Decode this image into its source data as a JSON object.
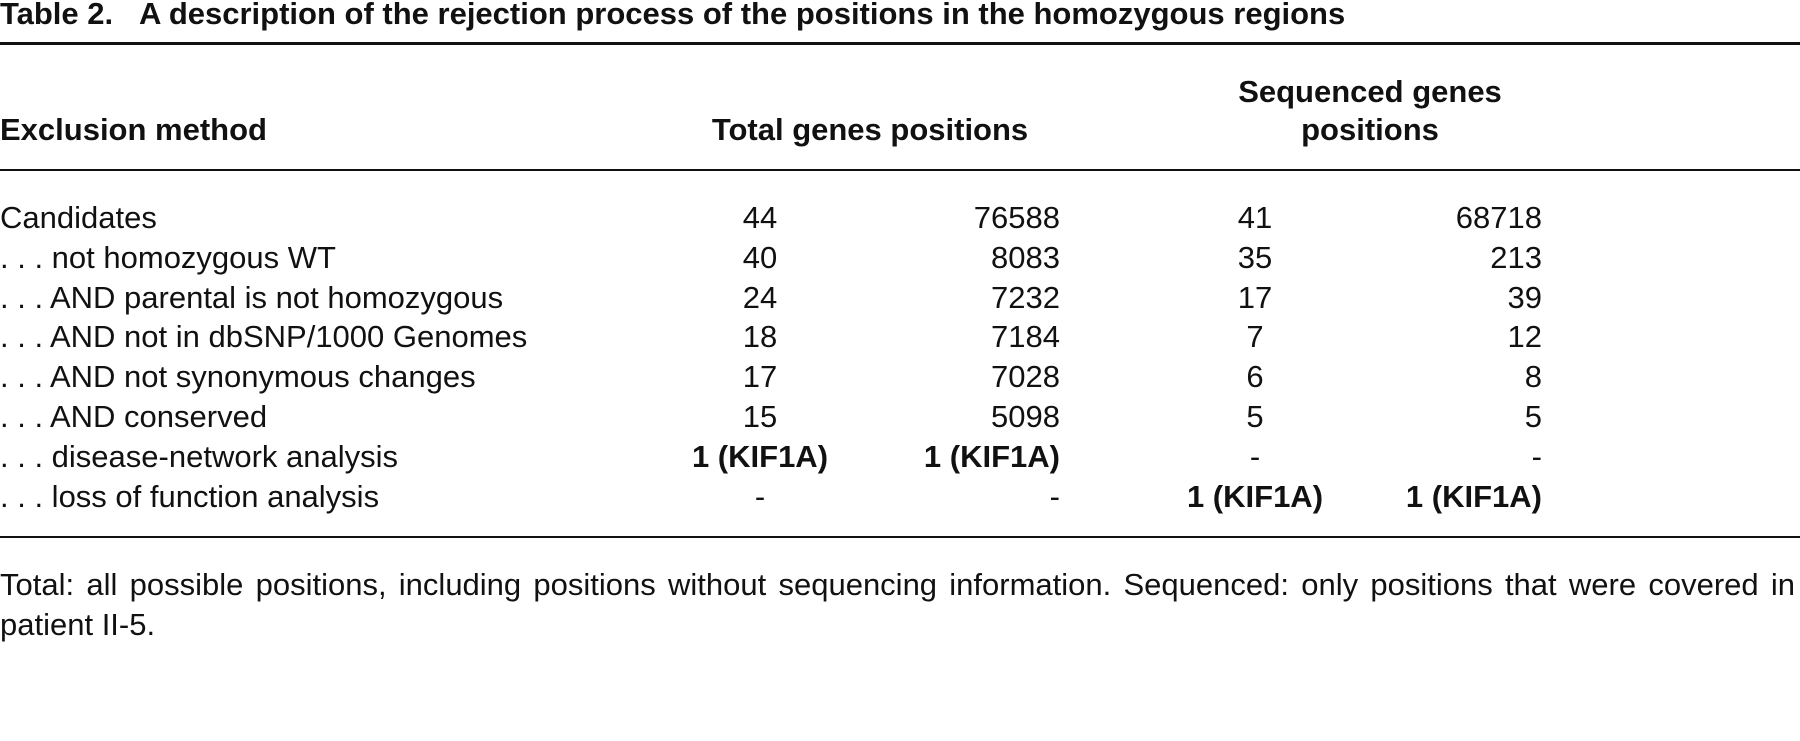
{
  "table": {
    "label": "Table 2.",
    "title": "A description of the rejection process of the positions in the homozygous regions",
    "headers": [
      "Exclusion method",
      "Total genes positions",
      "Sequenced genes positions"
    ],
    "rows": [
      [
        "Candidates",
        44,
        76588,
        41,
        68718
      ],
      [
        ". . . not homozygous WT",
        40,
        8083,
        35,
        213
      ],
      [
        ". . . AND parental is not homozygous",
        24,
        7232,
        17,
        39
      ],
      [
        ". . . AND not in dbSNP/1000 Genomes",
        18,
        7184,
        7,
        12
      ],
      [
        ". . . AND not synonymous changes",
        17,
        7028,
        6,
        8
      ],
      [
        ". . . AND conserved",
        15,
        5098,
        5,
        5
      ],
      [
        ". . . disease-network analysis",
        {
          "text": "1 (KIF1A)",
          "bold": true
        },
        {
          "text": "1 (KIF1A)",
          "bold": true
        },
        "-",
        "-"
      ],
      [
        ". . . loss of function analysis",
        "-",
        "-",
        {
          "text": "1 (KIF1A)",
          "bold": true
        },
        {
          "text": "1 (KIF1A)",
          "bold": true
        }
      ]
    ],
    "footnote": "Total: all possible positions, including positions without sequencing information. Sequenced: only positions that were covered in patient II-5."
  }
}
